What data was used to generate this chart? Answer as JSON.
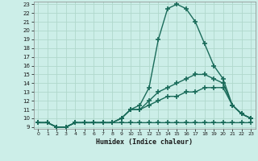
{
  "xlabel": "Humidex (Indice chaleur)",
  "ylabel": "",
  "x_ticks": [
    0,
    1,
    2,
    3,
    4,
    5,
    6,
    7,
    8,
    9,
    10,
    11,
    12,
    13,
    14,
    15,
    16,
    17,
    18,
    19,
    20,
    21,
    22,
    23
  ],
  "y_ticks": [
    9,
    10,
    11,
    12,
    13,
    14,
    15,
    16,
    17,
    18,
    19,
    20,
    21,
    22,
    23
  ],
  "xlim": [
    -0.5,
    23.5
  ],
  "ylim": [
    8.8,
    23.3
  ],
  "background_color": "#cceee8",
  "grid_color": "#b0d8cc",
  "line_color": "#1a6b5a",
  "lines": [
    {
      "x": [
        0,
        1,
        2,
        3,
        4,
        5,
        6,
        7,
        8,
        9,
        10,
        11,
        12,
        13,
        14,
        15,
        16,
        17,
        18,
        19,
        20,
        21,
        22,
        23
      ],
      "y": [
        9.5,
        9.5,
        9.0,
        9.0,
        9.5,
        9.5,
        9.5,
        9.5,
        9.5,
        10.0,
        11.0,
        11.5,
        13.5,
        19.0,
        22.5,
        23.0,
        22.5,
        21.0,
        18.5,
        16.0,
        14.5,
        11.5,
        10.5,
        10.0
      ]
    },
    {
      "x": [
        0,
        1,
        2,
        3,
        4,
        5,
        6,
        7,
        8,
        9,
        10,
        11,
        12,
        13,
        14,
        15,
        16,
        17,
        18,
        19,
        20,
        21,
        22,
        23
      ],
      "y": [
        9.5,
        9.5,
        9.0,
        9.0,
        9.5,
        9.5,
        9.5,
        9.5,
        9.5,
        10.0,
        11.0,
        11.0,
        12.0,
        13.0,
        13.5,
        14.0,
        14.5,
        15.0,
        15.0,
        14.5,
        14.0,
        11.5,
        10.5,
        10.0
      ]
    },
    {
      "x": [
        0,
        1,
        2,
        3,
        4,
        5,
        6,
        7,
        8,
        9,
        10,
        11,
        12,
        13,
        14,
        15,
        16,
        17,
        18,
        19,
        20,
        21,
        22,
        23
      ],
      "y": [
        9.5,
        9.5,
        9.0,
        9.0,
        9.5,
        9.5,
        9.5,
        9.5,
        9.5,
        10.0,
        11.0,
        11.0,
        11.5,
        12.0,
        12.5,
        12.5,
        13.0,
        13.0,
        13.5,
        13.5,
        13.5,
        11.5,
        10.5,
        10.0
      ]
    },
    {
      "x": [
        0,
        1,
        2,
        3,
        4,
        5,
        6,
        7,
        8,
        9,
        10,
        11,
        12,
        13,
        14,
        15,
        16,
        17,
        18,
        19,
        20,
        21,
        22,
        23
      ],
      "y": [
        9.5,
        9.5,
        9.0,
        9.0,
        9.5,
        9.5,
        9.5,
        9.5,
        9.5,
        9.5,
        9.5,
        9.5,
        9.5,
        9.5,
        9.5,
        9.5,
        9.5,
        9.5,
        9.5,
        9.5,
        9.5,
        9.5,
        9.5,
        9.5
      ]
    }
  ],
  "marker": "+",
  "markersize": 4,
  "markeredgewidth": 1.2,
  "linewidth": 1.0
}
